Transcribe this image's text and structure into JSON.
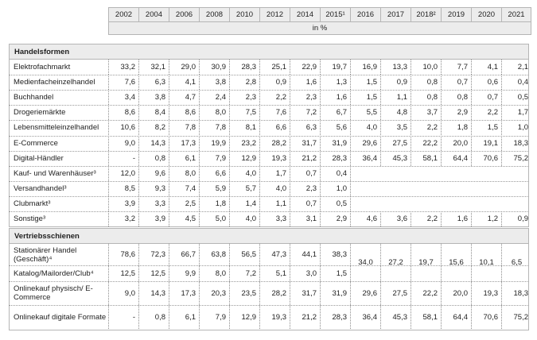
{
  "years": [
    "2002",
    "2004",
    "2006",
    "2008",
    "2010",
    "2012",
    "2014",
    "2015¹",
    "2016",
    "2017",
    "2018²",
    "2019",
    "2020",
    "2021"
  ],
  "unit": "in %",
  "sections": [
    {
      "title": "Handelsformen",
      "rows": [
        {
          "label": "Elektrofachmarkt",
          "values": [
            "33,2",
            "32,1",
            "29,0",
            "30,9",
            "28,3",
            "25,1",
            "22,9",
            "19,7",
            "16,9",
            "13,3",
            "10,0",
            "7,7",
            "4,1",
            "2,1"
          ]
        },
        {
          "label": "Medienfacheinzelhandel",
          "values": [
            "7,6",
            "6,3",
            "4,1",
            "3,8",
            "2,8",
            "0,9",
            "1,6",
            "1,3",
            "1,5",
            "0,9",
            "0,8",
            "0,7",
            "0,6",
            "0,4"
          ]
        },
        {
          "label": "Buchhandel",
          "values": [
            "3,4",
            "3,8",
            "4,7",
            "2,4",
            "2,3",
            "2,2",
            "2,3",
            "1,6",
            "1,5",
            "1,1",
            "0,8",
            "0,8",
            "0,7",
            "0,5"
          ]
        },
        {
          "label": "Drogeriemärkte",
          "values": [
            "8,6",
            "8,4",
            "8,6",
            "8,0",
            "7,5",
            "7,6",
            "7,2",
            "6,7",
            "5,5",
            "4,8",
            "3,7",
            "2,9",
            "2,2",
            "1,7"
          ]
        },
        {
          "label": "Lebensmitteleinzelhandel",
          "values": [
            "10,6",
            "8,2",
            "7,8",
            "7,8",
            "8,1",
            "6,6",
            "6,3",
            "5,6",
            "4,0",
            "3,5",
            "2,2",
            "1,8",
            "1,5",
            "1,0"
          ]
        },
        {
          "label": "E-Commerce",
          "values": [
            "9,0",
            "14,3",
            "17,3",
            "19,9",
            "23,2",
            "28,2",
            "31,7",
            "31,9",
            "29,6",
            "27,5",
            "22,2",
            "20,0",
            "19,1",
            "18,3"
          ]
        },
        {
          "label": "Digital-Händler",
          "values": [
            "-",
            "0,8",
            "6,1",
            "7,9",
            "12,9",
            "19,3",
            "21,2",
            "28,3",
            "36,4",
            "45,3",
            "58,1",
            "64,4",
            "70,6",
            "75,2"
          ]
        },
        {
          "label": "Kauf- und Warenhäuser³",
          "values": [
            "12,0",
            "9,6",
            "8,0",
            "6,6",
            "4,0",
            "1,7",
            "0,7",
            "0,4",
            "",
            "",
            "",
            "",
            "",
            ""
          ]
        },
        {
          "label": "Versandhandel³",
          "values": [
            "8,5",
            "9,3",
            "7,4",
            "5,9",
            "5,7",
            "4,0",
            "2,3",
            "1,0",
            "",
            "",
            "",
            "",
            "",
            ""
          ]
        },
        {
          "label": "Clubmarkt³",
          "values": [
            "3,9",
            "3,3",
            "2,5",
            "1,8",
            "1,4",
            "1,1",
            "0,7",
            "0,5",
            "",
            "",
            "",
            "",
            "",
            ""
          ]
        },
        {
          "label": "Sonstige³",
          "values": [
            "3,2",
            "3,9",
            "4,5",
            "5,0",
            "4,0",
            "3,3",
            "3,1",
            "2,9",
            "4,6",
            "3,6",
            "2,2",
            "1,6",
            "1,2",
            "0,9"
          ]
        }
      ]
    },
    {
      "title": "Vertriebsschienen",
      "rows": [
        {
          "label": "Stationärer Handel (Geschäft)⁴",
          "values": [
            "78,6",
            "72,3",
            "66,7",
            "63,8",
            "56,5",
            "47,3",
            "44,1",
            "38,3"
          ]
        },
        {
          "label": "Katalog/Mailorder/Club⁴",
          "values": [
            "12,5",
            "12,5",
            "9,9",
            "8,0",
            "7,2",
            "5,1",
            "3,0",
            "1,5"
          ]
        },
        {
          "label": "Onlinekauf physisch/ E-Commerce",
          "values": [
            "9,0",
            "14,3",
            "17,3",
            "20,3",
            "23,5",
            "28,2",
            "31,7",
            "31,9",
            "29,6",
            "27,5",
            "22,2",
            "20,0",
            "19,3",
            "18,3"
          ]
        },
        {
          "label": "Onlinekauf digitale Formate",
          "values": [
            "-",
            "0,8",
            "6,1",
            "7,9",
            "12,9",
            "19,3",
            "21,2",
            "28,3",
            "36,4",
            "45,3",
            "58,1",
            "64,4",
            "70,6",
            "75,2"
          ]
        }
      ],
      "merged_values_2016_2021": [
        "34,0",
        "27,2",
        "19,7",
        "15,6",
        "10,1",
        "6,5"
      ]
    }
  ]
}
